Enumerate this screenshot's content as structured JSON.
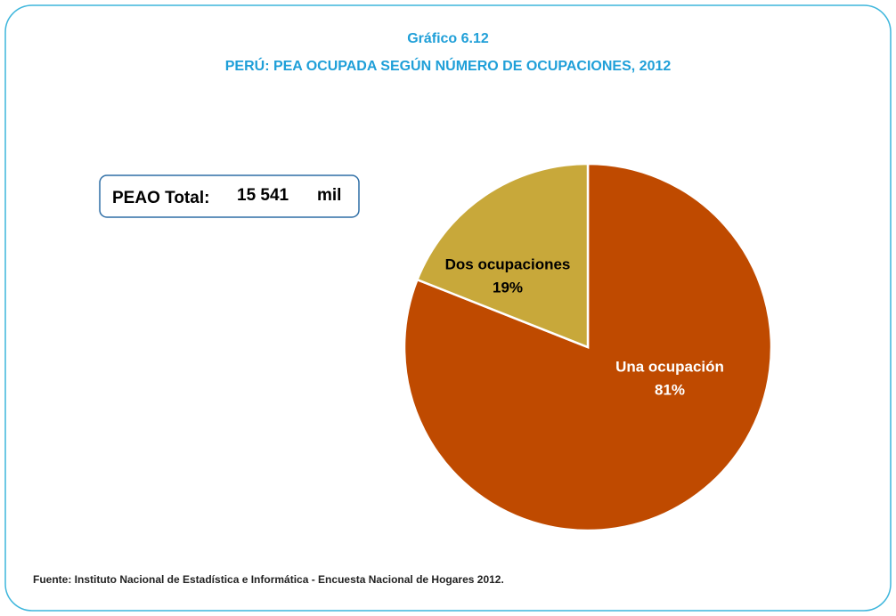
{
  "chart_data": {
    "type": "pie",
    "title": "Gráfico  6.12",
    "subtitle": "PERÚ: PEA OCUPADA SEGÚN NÚMERO DE OCUPACIONES, 2012",
    "categories": [
      "Una ocupación",
      "Dos ocupaciones"
    ],
    "values": [
      81,
      19
    ],
    "value_labels": [
      "81%",
      "19%"
    ],
    "colors": [
      "#bf4a00",
      "#c8a83a"
    ],
    "annotation": {
      "label": "PEAO Total:",
      "value": "15 541",
      "unit": "mil"
    },
    "source": "Fuente: Instituto Nacional de Estadística e Informática - Encuesta Nacional de Hogares 2012."
  }
}
